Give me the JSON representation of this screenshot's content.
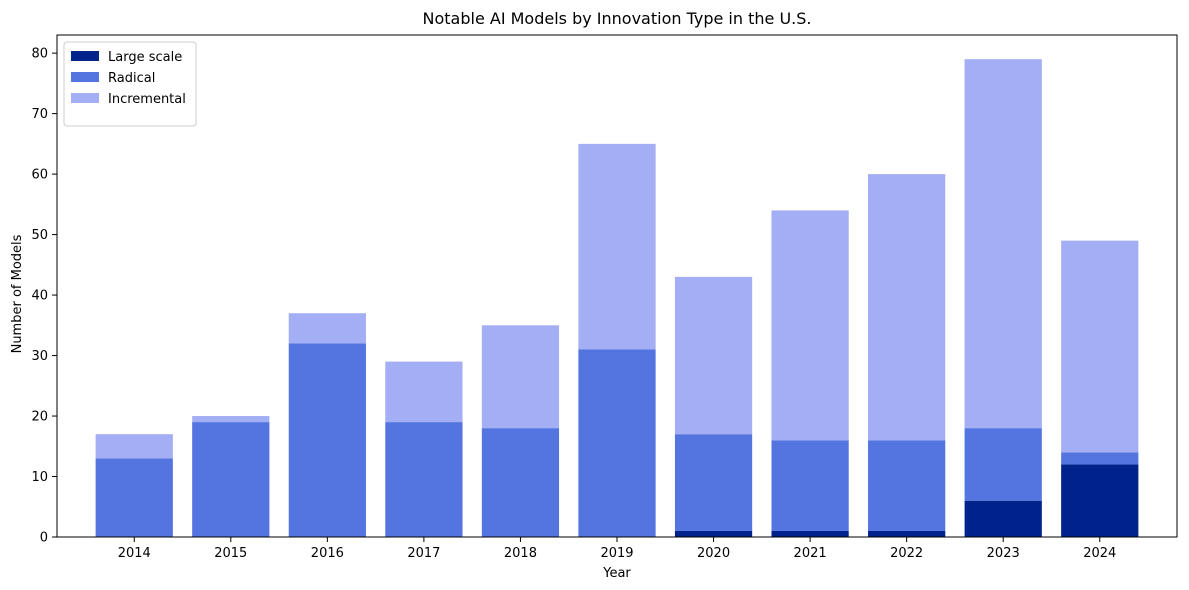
{
  "chart_data": {
    "type": "bar",
    "stacked": true,
    "title": "Notable AI Models by Innovation Type in the U.S.",
    "xlabel": "Year",
    "ylabel": "Number of Models",
    "categories": [
      "2014",
      "2015",
      "2016",
      "2017",
      "2018",
      "2019",
      "2020",
      "2021",
      "2022",
      "2023",
      "2024"
    ],
    "series": [
      {
        "name": "Large scale",
        "color": "#00228b",
        "values": [
          0,
          0,
          0,
          0,
          0,
          0,
          1,
          1,
          1,
          6,
          12
        ]
      },
      {
        "name": "Radical",
        "color": "#5475df",
        "values": [
          13,
          19,
          32,
          19,
          18,
          31,
          16,
          15,
          15,
          12,
          2
        ]
      },
      {
        "name": "Incremental",
        "color": "#a3aef4",
        "values": [
          4,
          1,
          5,
          10,
          17,
          34,
          26,
          38,
          44,
          61,
          35
        ]
      }
    ],
    "ylim": [
      0,
      83
    ],
    "yticks": [
      0,
      10,
      20,
      30,
      40,
      50,
      60,
      70,
      80
    ],
    "grid": false,
    "legend_position": "top-left"
  }
}
